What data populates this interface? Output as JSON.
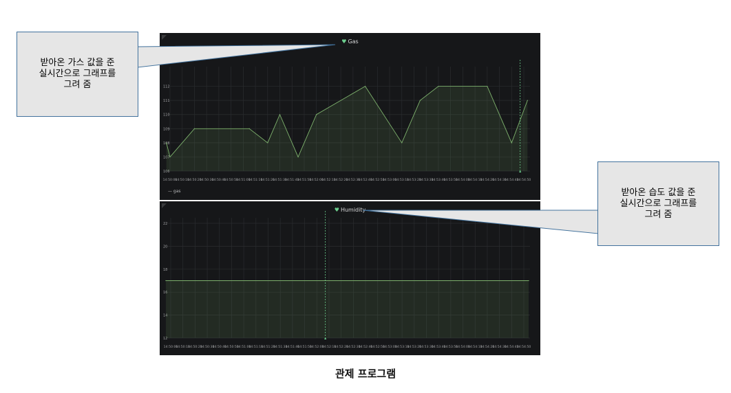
{
  "caption": "관제 프로그램",
  "callouts": {
    "gas": "받아온 가스 값을 준\n실시간으로 그래프를\n그려 줌",
    "humidity": "받아온 습도 값을 준\n실시간으로 그래프를\n그려 줌"
  },
  "colors": {
    "panel_bg": "#161719",
    "grid": "#2a2c2f",
    "series_line": "#7eb26d",
    "series_fill": "rgba(126,178,109,0.13)",
    "marker": "#6ccf8e",
    "callout_bg": "#e6e6e6",
    "callout_border": "#41719c"
  },
  "chart_data": [
    {
      "type": "area",
      "title": "Gas",
      "legend": [
        "gas"
      ],
      "legend_placement": "bottom-left",
      "grid": true,
      "ylim": [
        106,
        113
      ],
      "yticks": [
        "106",
        "107",
        "108",
        "109",
        "110",
        "111",
        "112"
      ],
      "xticks": [
        "14:50:00",
        "14:50:10",
        "14:50:20",
        "14:50:30",
        "14:50:40",
        "14:50:50",
        "14:51:00",
        "14:51:10",
        "14:51:20",
        "14:51:30",
        "14:51:40",
        "14:51:50",
        "14:52:00",
        "14:52:10",
        "14:52:20",
        "14:52:30",
        "14:52:40",
        "14:52:50",
        "14:53:00",
        "14:53:10",
        "14:53:20",
        "14:53:30",
        "14:53:40",
        "14:53:50",
        "14:54:00",
        "14:54:10",
        "14:54:20",
        "14:54:30",
        "14:54:40",
        "14:54:50"
      ],
      "series": [
        {
          "name": "gas",
          "x_tick_index": [
            -0.3,
            0,
            2,
            6.5,
            8,
            9,
            10.5,
            12,
            16,
            19,
            20.5,
            22,
            26,
            28,
            29.3
          ],
          "values": [
            108,
            107,
            109,
            109,
            108,
            110,
            107,
            110,
            112,
            108,
            111,
            112,
            112,
            108,
            111
          ]
        }
      ],
      "marker_x_tick_index": 28.7
    },
    {
      "type": "area",
      "title": "Humidity",
      "legend": [],
      "grid": true,
      "ylim": [
        12,
        22
      ],
      "yticks": [
        "12",
        "14",
        "16",
        "18",
        "20",
        "22"
      ],
      "xticks": [
        "14:50:00",
        "14:50:10",
        "14:50:20",
        "14:50:30",
        "14:50:40",
        "14:50:50",
        "14:51:00",
        "14:51:10",
        "14:51:20",
        "14:51:30",
        "14:51:40",
        "14:51:50",
        "14:52:00",
        "14:52:10",
        "14:52:20",
        "14:52:30",
        "14:52:40",
        "14:52:50",
        "14:53:00",
        "14:53:10",
        "14:53:20",
        "14:53:30",
        "14:53:40",
        "14:53:50",
        "14:54:00",
        "14:54:10",
        "14:54:20",
        "14:54:30",
        "14:54:40",
        "14:54:50"
      ],
      "series": [
        {
          "name": "humidity",
          "x_tick_index": [
            -0.4,
            29.4
          ],
          "values": [
            17,
            17
          ]
        }
      ],
      "marker_x_tick_index": 12.7
    }
  ]
}
